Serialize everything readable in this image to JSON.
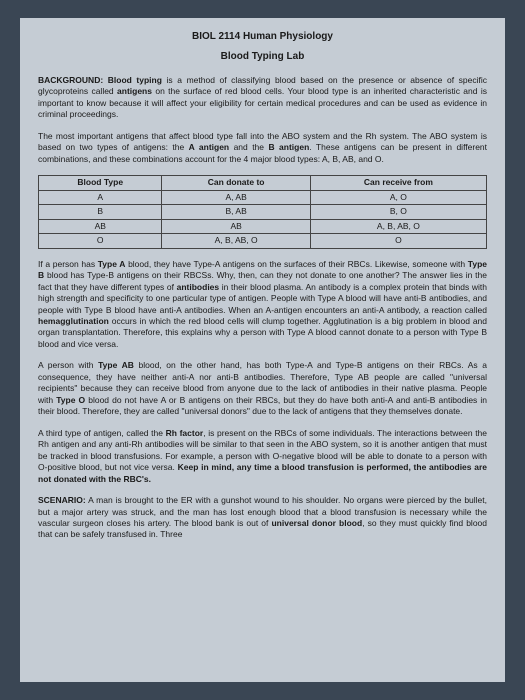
{
  "course": "BIOL 2114 Human Physiology",
  "labTitle": "Blood Typing Lab",
  "background": {
    "label": "BACKGROUND:",
    "text": "Blood typing is a method of classifying blood based on the presence or absence of specific glycoproteins called antigens on the surface of red blood cells. Your blood type is an inherited characteristic and is important to know because it will affect your eligibility for certain medical procedures and can be used as evidence in criminal proceedings."
  },
  "para2": "The most important antigens that affect blood type fall into the ABO system and the Rh system. The ABO system is based on two types of antigens: the A antigen and the B antigen. These antigens can be present in different combinations, and these combinations account for the 4 major blood types: A, B, AB, and O.",
  "table": {
    "headers": [
      "Blood Type",
      "Can donate to",
      "Can receive from"
    ],
    "rows": [
      [
        "A",
        "A, AB",
        "A, O"
      ],
      [
        "B",
        "B, AB",
        "B, O"
      ],
      [
        "AB",
        "AB",
        "A, B, AB, O"
      ],
      [
        "O",
        "A, B, AB, O",
        "O"
      ]
    ]
  },
  "para3": "If a person has Type A blood, they have Type-A antigens on the surfaces of their RBCs. Likewise, someone with Type B blood has Type-B antigens on their RBCSs. Why, then, can they not donate to one another? The answer lies in the fact that they have different types of antibodies in their blood plasma. An antibody is a complex protein that binds with high strength and specificity to one particular type of antigen. People with Type A blood will have anti-B antibodies, and people with Type B blood have anti-A antibodies. When an A-antigen encounters an anti-A antibody, a reaction called hemagglutination occurs in which the red blood cells will clump together. Agglutination is a big problem in blood and organ transplantation. Therefore, this explains why a person with Type A blood cannot donate to a person with Type B blood and vice versa.",
  "para4": "A person with Type AB blood, on the other hand, has both Type-A and Type-B antigens on their RBCs. As a consequence, they have neither anti-A nor anti-B antibodies. Therefore, Type AB people are called \"universal recipients\" because they can receive blood from anyone due to the lack of antibodies in their native plasma. People with Type O blood do not have A or B antigens on their RBCs, but they do have both anti-A and anti-B antibodies in their blood. Therefore, they are called \"universal donors\" due to the lack of antigens that they themselves donate.",
  "para5": "A third type of antigen, called the Rh factor, is present on the RBCs of some individuals. The interactions between the Rh antigen and any anti-Rh antibodies will be similar to that seen in the ABO system, so it is another antigen that must be tracked in blood transfusions. For example, a person with O-negative blood will be able to donate to a person with O-positive blood, but not vice versa. Keep in mind, any time a blood transfusion is performed, the antibodies are not donated with the RBC's.",
  "scenario": {
    "label": "SCENARIO:",
    "text": "A man is brought to the ER with a gunshot wound to his shoulder. No organs were pierced by the bullet, but a major artery was struck, and the man has lost enough blood that a blood transfusion is necessary while the vascular surgeon closes his artery. The blood bank is out of universal donor blood, so they must quickly find blood that can be safely transfused in. Three"
  }
}
